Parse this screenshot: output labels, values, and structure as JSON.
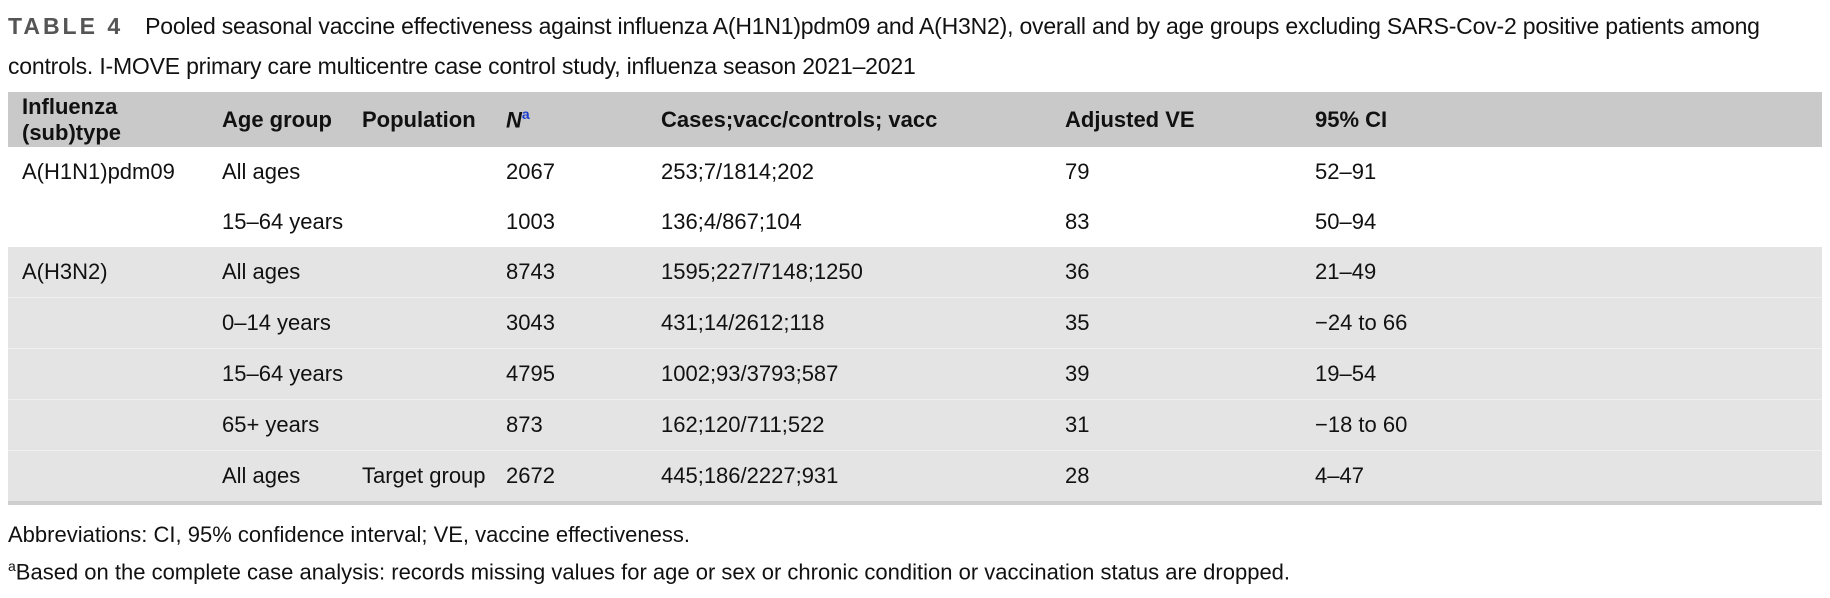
{
  "caption": {
    "label": "TABLE 4",
    "text": "Pooled seasonal vaccine effectiveness against influenza A(H1N1)pdm09 and A(H3N2), overall and by age groups excluding SARS-Cov-2 positive patients among controls. I-MOVE primary care multicentre case control study, influenza season 2021–2021"
  },
  "table": {
    "headers": [
      "Influenza (sub)type",
      "Age group",
      "Population",
      "N",
      "Cases;vacc/controls; vacc",
      "Adjusted VE",
      "95% CI"
    ],
    "n_footnote_mark": "a",
    "rows": [
      [
        "A(H1N1)pdm09",
        "All ages",
        "",
        "2067",
        "253;7/1814;202",
        "79",
        "52–91"
      ],
      [
        "",
        "15–64 years",
        "",
        "1003",
        "136;4/867;104",
        "83",
        "50–94"
      ],
      [
        "A(H3N2)",
        "All ages",
        "",
        "8743",
        "1595;227/7148;1250",
        "36",
        "21–49"
      ],
      [
        "",
        "0–14 years",
        "",
        "3043",
        "431;14/2612;118",
        "35",
        "−24 to 66"
      ],
      [
        "",
        "15–64 years",
        "",
        "4795",
        "1002;93/3793;587",
        "39",
        "19–54"
      ],
      [
        "",
        "65+ years",
        "",
        "873",
        "162;120/711;522",
        "31",
        "−18 to 60"
      ],
      [
        "",
        "All ages",
        "Target group",
        "2672",
        "445;186/2227;931",
        "28",
        "4–47"
      ]
    ]
  },
  "footnotes": {
    "abbreviations": "Abbreviations: CI, 95% confidence interval; VE, vaccine effectiveness.",
    "a_mark": "a",
    "a_text": "Based on the complete case analysis: records missing values for age or sex or chronic condition or vaccination status are dropped."
  }
}
